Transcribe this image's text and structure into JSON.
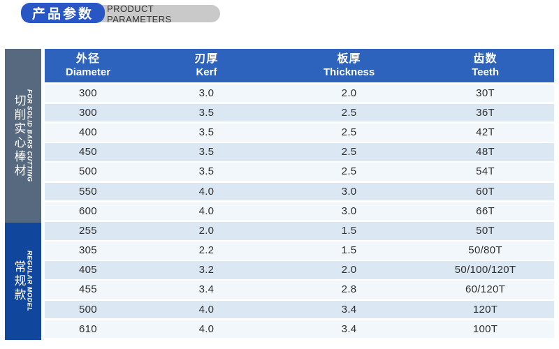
{
  "page_header": {
    "title_zh": "产品参数",
    "title_en": "PRODUCT PARAMETERS",
    "pill_blue_color": "#2857c5",
    "pill_gray_color": "#c9c9c9"
  },
  "table": {
    "header_bg": "#2d63bd",
    "row_light": "#f2f7fb",
    "row_dark": "#dbe8f4",
    "columns": [
      {
        "zh": "外径",
        "en": "Diameter"
      },
      {
        "zh": "刃厚",
        "en": "Kerf"
      },
      {
        "zh": "板厚",
        "en": "Thickness"
      },
      {
        "zh": "齿数",
        "en": "Teeth"
      }
    ],
    "sections": [
      {
        "label_zh": "切削实心棒材",
        "label_en": "FOR SOLID BARS CUTTING",
        "color": "#57697f",
        "rows": [
          [
            "300",
            "3.0",
            "2.0",
            "30T"
          ],
          [
            "300",
            "3.5",
            "2.5",
            "36T"
          ],
          [
            "400",
            "3.5",
            "2.5",
            "42T"
          ],
          [
            "450",
            "3.5",
            "2.5",
            "48T"
          ],
          [
            "500",
            "3.5",
            "2.5",
            "54T"
          ],
          [
            "550",
            "4.0",
            "3.0",
            "60T"
          ],
          [
            "600",
            "4.0",
            "3.0",
            "66T"
          ]
        ]
      },
      {
        "label_zh": "常规款",
        "label_en": "REGULAR MODEL",
        "color": "#10479c",
        "rows": [
          [
            "255",
            "2.0",
            "1.5",
            "50T"
          ],
          [
            "305",
            "2.2",
            "1.5",
            "50/80T"
          ],
          [
            "405",
            "3.2",
            "2.0",
            "50/100/120T"
          ],
          [
            "455",
            "3.4",
            "2.8",
            "60/120T"
          ],
          [
            "500",
            "4.0",
            "3.4",
            "120T"
          ],
          [
            "610",
            "4.0",
            "3.4",
            "100T"
          ]
        ]
      }
    ]
  }
}
